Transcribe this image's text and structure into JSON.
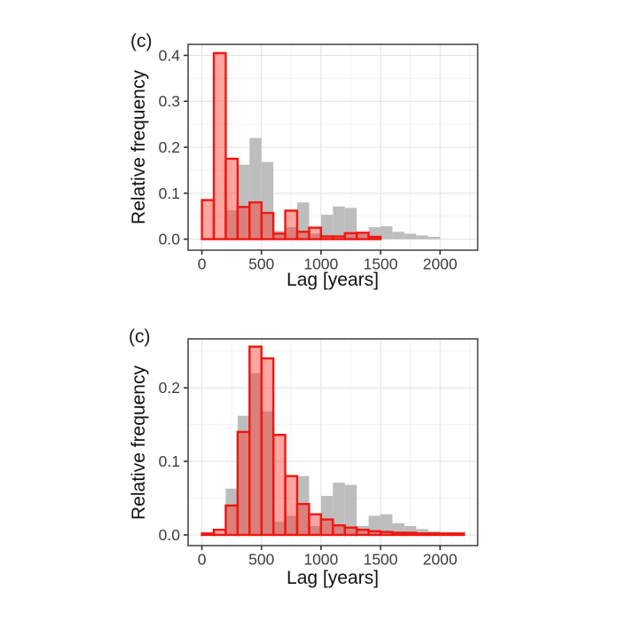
{
  "page": {
    "background": "#ffffff"
  },
  "styles": {
    "gray_fill": "#bdbdbd",
    "red_stroke": "#f11510",
    "red_fill": "rgba(255,42,32,0.42)",
    "grid_major": "#e3e3e3",
    "grid_minor": "#f2f2f2",
    "panel_border": "#4a4a4a",
    "tick_color": "#333333",
    "tick_text_color": "#3d3d3d"
  },
  "chart_data": [
    {
      "type": "bar",
      "subtype": "overlaid-histograms",
      "panel_label": "(c)",
      "title": "",
      "xlabel": "Lag [years]",
      "ylabel": "Relative frequency",
      "bin_width": 100,
      "xlim": [
        -116,
        2316
      ],
      "ylim": [
        -0.024,
        0.424
      ],
      "x_ticks": [
        0,
        500,
        1000,
        1500,
        2000
      ],
      "x_tick_labels": [
        "0",
        "500",
        "1000",
        "1500",
        "2000"
      ],
      "y_ticks": [
        0,
        0.1,
        0.2,
        0.3,
        0.4
      ],
      "y_tick_labels": [
        "0.0",
        "0.1",
        "0.2",
        "0.3",
        "0.4"
      ],
      "grid": true,
      "legend": "none",
      "series": [
        {
          "name": "reference-distribution-gray",
          "role": "gray",
          "bin_start": 0,
          "values": [
            0,
            0,
            0.063,
            0.162,
            0.22,
            0.168,
            0.018,
            0.026,
            0.08,
            0.012,
            0.053,
            0.071,
            0.068,
            0.012,
            0.026,
            0.028,
            0.016,
            0.012,
            0.008,
            0.005
          ]
        },
        {
          "name": "lag-distribution-red",
          "role": "red",
          "bin_start": 0,
          "values": [
            0.085,
            0.405,
            0.175,
            0.07,
            0.08,
            0.057,
            0.012,
            0.062,
            0.016,
            0.025,
            0.006,
            0.006,
            0.013,
            0.014,
            0.005
          ]
        }
      ]
    },
    {
      "type": "bar",
      "subtype": "overlaid-histograms",
      "panel_label": "(c)",
      "title": "",
      "xlabel": "Lag [years]",
      "ylabel": "Relative frequency",
      "bin_width": 100,
      "xlim": [
        -116,
        2316
      ],
      "ylim": [
        -0.0145,
        0.2665
      ],
      "x_ticks": [
        0,
        500,
        1000,
        1500,
        2000
      ],
      "x_tick_labels": [
        "0",
        "500",
        "1000",
        "1500",
        "2000"
      ],
      "y_ticks": [
        0,
        0.1,
        0.2
      ],
      "y_tick_labels": [
        "0.0",
        "0.1",
        "0.2"
      ],
      "grid": true,
      "legend": "none",
      "series": [
        {
          "name": "reference-distribution-gray",
          "role": "gray",
          "bin_start": 0,
          "values": [
            0,
            0,
            0.063,
            0.162,
            0.22,
            0.168,
            0.018,
            0.026,
            0.08,
            0.012,
            0.053,
            0.071,
            0.068,
            0.012,
            0.026,
            0.028,
            0.016,
            0.012,
            0.008,
            0.005
          ]
        },
        {
          "name": "lag-distribution-red",
          "role": "red",
          "bin_start": 0,
          "values": [
            0.002,
            0.007,
            0.04,
            0.14,
            0.256,
            0.24,
            0.136,
            0.08,
            0.042,
            0.028,
            0.021,
            0.013,
            0.01,
            0.007,
            0.005,
            0.004,
            0.003,
            0.003,
            0.002,
            0.002,
            0.002,
            0.002
          ]
        }
      ]
    }
  ]
}
